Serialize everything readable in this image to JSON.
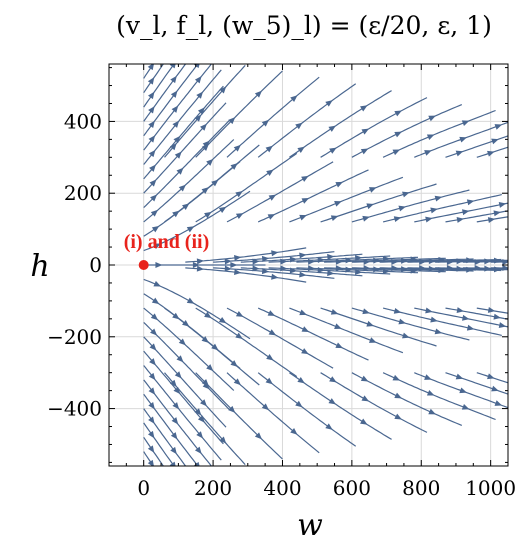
{
  "chart_data": {
    "type": "streamplot",
    "title": "(v_l, f_l, (w_5)_l) = (ε/20, ε, 1)",
    "xlabel": "w",
    "ylabel": "h",
    "xlim": [
      -100,
      1050
    ],
    "ylim": [
      -560,
      560
    ],
    "xticks": [
      0,
      200,
      400,
      600,
      800,
      1000
    ],
    "yticks": [
      -400,
      -200,
      0,
      200,
      400
    ],
    "xtick_labels": [
      "0",
      "200",
      "400",
      "600",
      "800",
      "1000"
    ],
    "ytick_labels": [
      "−400",
      "−200",
      "0",
      "200",
      "400"
    ],
    "grid": true,
    "fixed_point": {
      "x": 0,
      "y": 0,
      "label": "(i) and (ii)"
    },
    "colors": {
      "stream": "#4a6790",
      "point": "#e8231c",
      "grid": "#d9d9d9",
      "frame": "#000000"
    }
  }
}
